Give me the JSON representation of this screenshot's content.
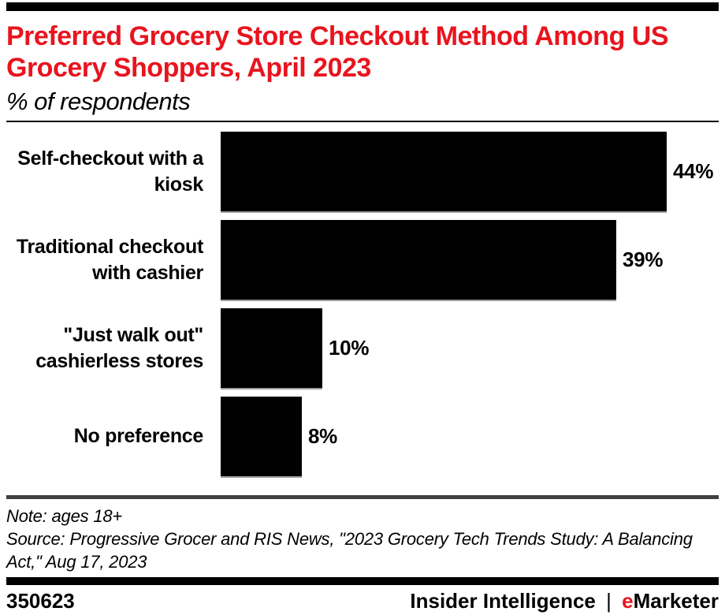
{
  "chart_data": {
    "type": "bar",
    "orientation": "horizontal",
    "title": "Preferred Grocery Store Checkout Method Among US Grocery Shoppers, April 2023",
    "title_lines": [
      "Preferred Grocery Store Checkout Method Among US",
      "Grocery Shoppers, April 2023"
    ],
    "subtitle": "% of respondents",
    "categories": [
      "Self-checkout with a kiosk",
      "Traditional checkout with cashier",
      "\"Just walk out\" cashierless stores",
      "No preference"
    ],
    "category_lines": [
      [
        "Self-checkout with a",
        "kiosk"
      ],
      [
        "Traditional checkout",
        "with cashier"
      ],
      [
        "\"Just walk out\"",
        "cashierless stores"
      ],
      [
        "No preference"
      ]
    ],
    "values": [
      44,
      39,
      10,
      8
    ],
    "value_labels": [
      "44%",
      "39%",
      "10%",
      "8%"
    ],
    "unit": "%",
    "xlim": [
      0,
      44
    ],
    "bar_color": "#000000",
    "grid": false,
    "legend": false,
    "axes_shown": false
  },
  "notes": {
    "note": "Note: ages 18+",
    "source": "Source: Progressive Grocer and RIS News, \"2023 Grocery Tech Trends Study: A Balancing Act,\" Aug 17, 2023"
  },
  "footer": {
    "chart_id": "350623",
    "brand_left": "Insider Intelligence",
    "separator": "|",
    "brand_e": "e",
    "brand_rest": "Marketer"
  },
  "colors": {
    "accent_red": "#e8141e",
    "bar_black": "#000000",
    "separator_gray": "#414141"
  }
}
